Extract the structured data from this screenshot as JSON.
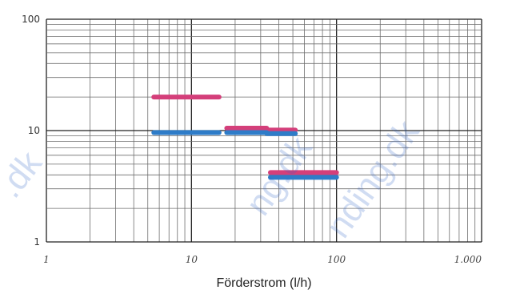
{
  "chart_data": {
    "type": "line",
    "xlabel": "Förderstrom (l/h)",
    "ylabel": "",
    "x_scale": "log",
    "y_scale": "log",
    "xlim": [
      1,
      1000
    ],
    "ylim": [
      1,
      100
    ],
    "grid": true,
    "x_ticks": [
      "1",
      "10",
      "100",
      "1.000"
    ],
    "y_ticks": [
      "1",
      "10",
      "100"
    ],
    "series": [
      {
        "color": "#d43f7a",
        "segments": [
          {
            "x": [
              5.5,
              15.5
            ],
            "y": [
              20,
              20
            ]
          },
          {
            "x": [
              17.5,
              33
            ],
            "y": [
              10.5,
              10.5
            ]
          },
          {
            "x": [
              33,
              52
            ],
            "y": [
              10.1,
              10.1
            ]
          },
          {
            "x": [
              35,
              100
            ],
            "y": [
              4.2,
              4.2
            ]
          }
        ]
      },
      {
        "color": "#2e7cc8",
        "segments": [
          {
            "x": [
              5.5,
              15.5
            ],
            "y": [
              9.6,
              9.6
            ]
          },
          {
            "x": [
              17.5,
              33
            ],
            "y": [
              9.6,
              9.6
            ]
          },
          {
            "x": [
              33,
              52
            ],
            "y": [
              9.4,
              9.4
            ]
          },
          {
            "x": [
              35,
              100
            ],
            "y": [
              3.8,
              3.8
            ]
          }
        ]
      }
    ]
  },
  "watermark": {
    "texts": [
      ".dk",
      "ng.dk",
      "nding.dk"
    ],
    "color": "#2f63c8"
  }
}
